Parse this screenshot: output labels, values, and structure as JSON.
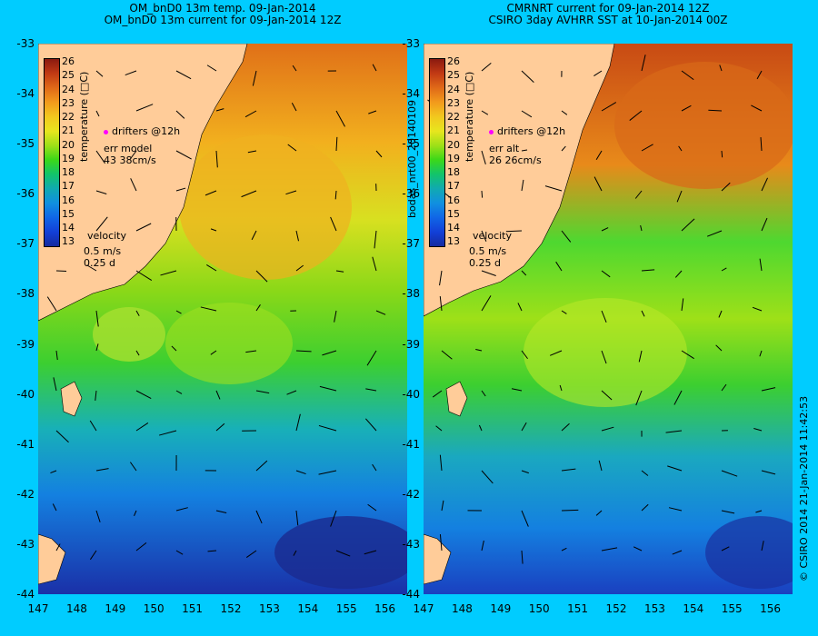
{
  "titles": {
    "left_line1": "OM_bnD0 13m temp. 09-Jan-2014",
    "left_line2": "OM_bnD0 13m current for 09-Jan-2014 12Z",
    "right_line1": "CMRNRT current for 09-Jan-2014 12Z",
    "right_line2": "CSIRO 3day AVHRR SST at 10-Jan-2014 00Z"
  },
  "axes": {
    "lat_ticks": [
      "-33",
      "-34",
      "-35",
      "-36",
      "-37",
      "-38",
      "-39",
      "-40",
      "-41",
      "-42",
      "-43",
      "-44"
    ],
    "lon_ticks": [
      "147",
      "148",
      "149",
      "150",
      "151",
      "152",
      "153",
      "154",
      "155",
      "156"
    ]
  },
  "colorbar": {
    "title": "temperature (□C)",
    "ticks": [
      "26",
      "25",
      "24",
      "23",
      "22",
      "21",
      "20",
      "19",
      "18",
      "17",
      "16",
      "15",
      "14",
      "13"
    ],
    "colors": [
      "#8a1a10",
      "#c23a14",
      "#e06a18",
      "#f29a1c",
      "#f2c81e",
      "#e8e61e",
      "#9ee018",
      "#3cd818",
      "#12c46a",
      "#10aab0",
      "#1090e0",
      "#1066e6",
      "#1240d8",
      "#152aa0"
    ]
  },
  "left_legend": {
    "drifters": "drifters @12h",
    "err_label": "err model",
    "err_value": "43 38cm/s",
    "velocity_title": "velocity",
    "velocity_speed": "0.5 m/s",
    "velocity_time": "0.25 d"
  },
  "right_legend": {
    "drifters": "drifters @12h",
    "err_label": "err alt",
    "err_value": "26 26cm/s",
    "velocity_title": "velocity",
    "velocity_speed": "0.5 m/s",
    "velocity_time": "0.25 d"
  },
  "side_label": "bodas_nrt00_20140109",
  "credit": "© CSIRO 2014   21-Jan-2014 11:42:53",
  "colors": {
    "background": "#00ccff",
    "land": "#ffcc99",
    "drifter": "#ff00ff"
  }
}
